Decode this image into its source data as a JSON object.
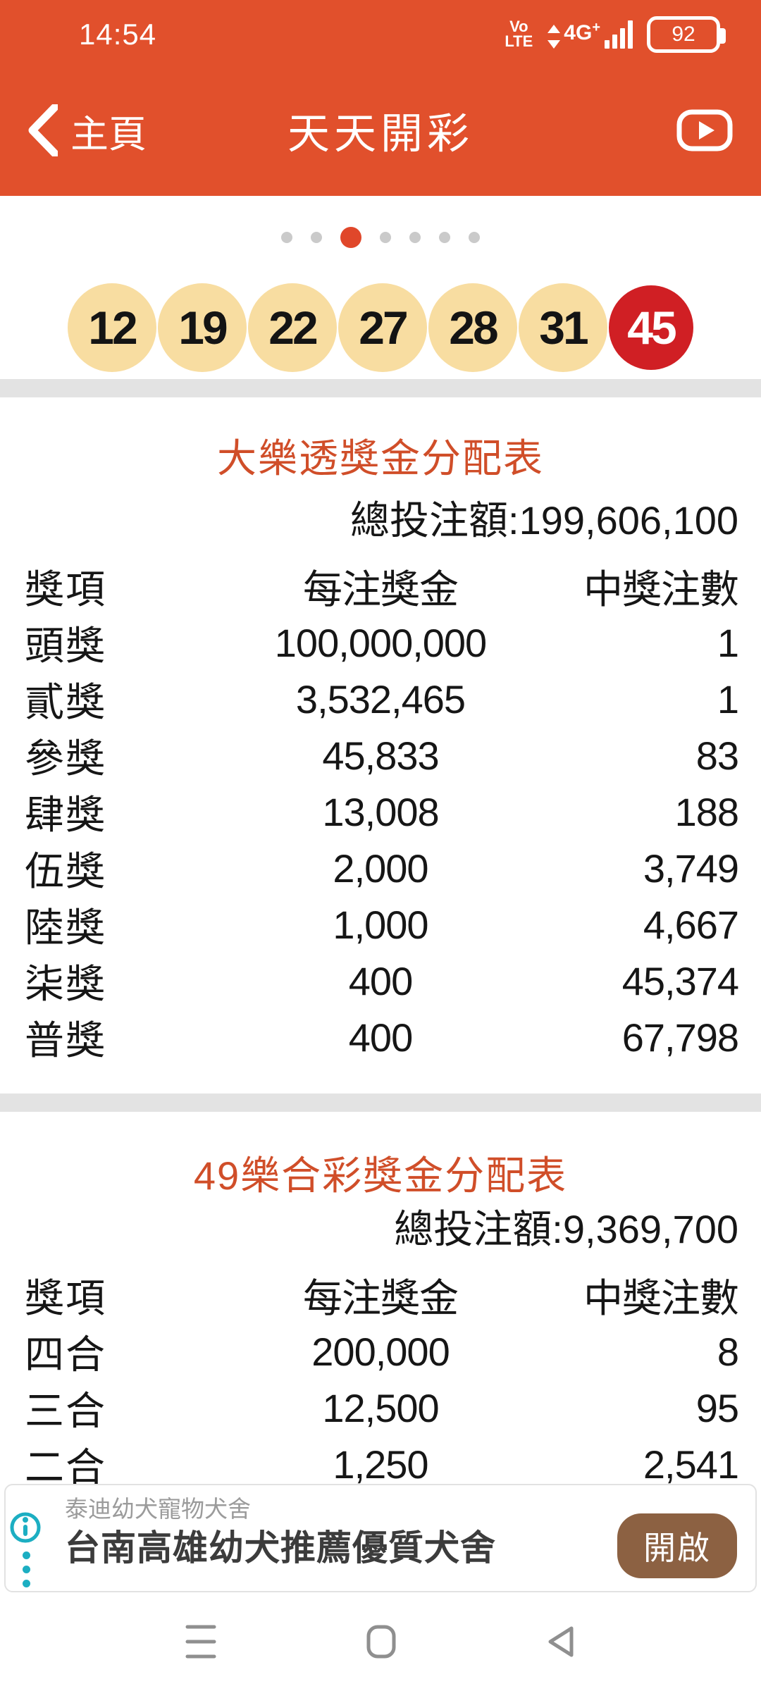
{
  "status_bar": {
    "time": "14:54",
    "volte_line1": "Vo",
    "volte_line2": "LTE",
    "network": "4G",
    "network_plus": "+",
    "battery_level": "92"
  },
  "app_bar": {
    "back_label": "主頁",
    "title": "天天開彩"
  },
  "carousel": {
    "dot_count": 7,
    "active_index": 2
  },
  "winning_numbers": {
    "regular": [
      "12",
      "19",
      "22",
      "27",
      "28",
      "31"
    ],
    "special": "45"
  },
  "big_lotto": {
    "title": "大樂透獎金分配表",
    "total_label": "總投注額:",
    "total_amount": "199,606,100",
    "columns": [
      "獎項",
      "每注獎金",
      "中獎注數"
    ],
    "rows": [
      [
        "頭獎",
        "100,000,000",
        "1"
      ],
      [
        "貳獎",
        "3,532,465",
        "1"
      ],
      [
        "參獎",
        "45,833",
        "83"
      ],
      [
        "肆獎",
        "13,008",
        "188"
      ],
      [
        "伍獎",
        "2,000",
        "3,749"
      ],
      [
        "陸獎",
        "1,000",
        "4,667"
      ],
      [
        "柒獎",
        "400",
        "45,374"
      ],
      [
        "普獎",
        "400",
        "67,798"
      ]
    ]
  },
  "lotto49": {
    "title": "49樂合彩獎金分配表",
    "total_label": "總投注額:",
    "total_amount": "9,369,700",
    "columns": [
      "獎項",
      "每注獎金",
      "中獎注數"
    ],
    "rows": [
      [
        "四合",
        "200,000",
        "8"
      ],
      [
        "三合",
        "12,500",
        "95"
      ],
      [
        "二合",
        "1,250",
        "2,541"
      ]
    ]
  },
  "ad": {
    "advertiser": "泰迪幼犬寵物犬舍",
    "headline": "台南高雄幼犬推薦優質犬舍",
    "button_label": "開啟"
  },
  "icons": {
    "app_bar_left": "back-chevron-icon",
    "app_bar_right": "video-play-icon",
    "ad_left": "info-icon",
    "nav": [
      "menu-icon",
      "home-square-icon",
      "back-triangle-icon"
    ]
  },
  "colors": {
    "primary": "#E1502C",
    "section_title": "#D04E29",
    "ball_yellow": "#F8DDA1",
    "ball_special_red": "#D01F24",
    "active_dot": "#E0472A",
    "ad_button_brown": "#8C6142",
    "ad_info_teal": "#1CAEC2",
    "nav_icon_gray": "#8F8F8F",
    "divider_gray": "#E3E3E3"
  }
}
